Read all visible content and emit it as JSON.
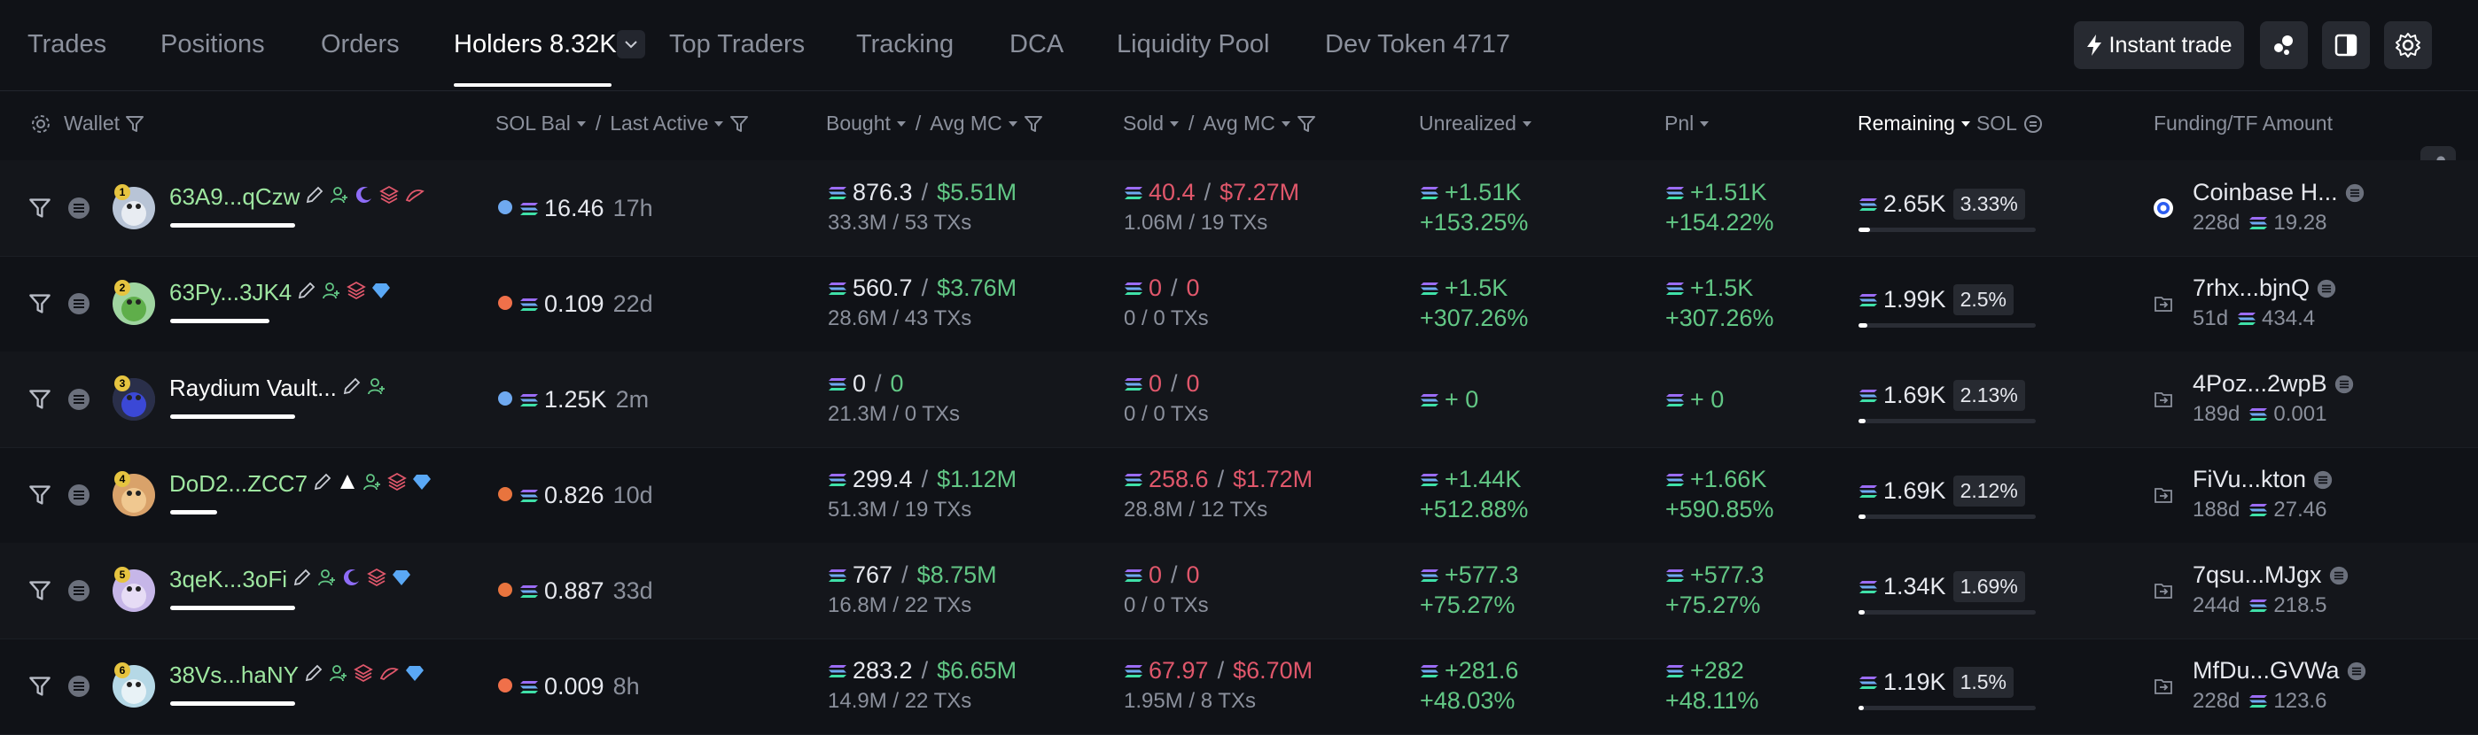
{
  "tabs": {
    "trades": "Trades",
    "positions": "Positions",
    "orders": "Orders",
    "holders": "Holders 8.32K",
    "top_traders": "Top Traders",
    "tracking": "Tracking",
    "dca": "DCA",
    "liquidity_pool": "Liquidity Pool",
    "dev_token": "Dev Token 4717"
  },
  "toolbar": {
    "instant_trade": "Instant trade"
  },
  "columns": {
    "wallet": "Wallet",
    "sol_bal": "SOL Bal",
    "last_active": "Last Active",
    "bought": "Bought",
    "avg_mc_bought": "Avg MC",
    "sold": "Sold",
    "avg_mc_sold": "Avg MC",
    "unrealized": "Unrealized",
    "pnl": "Pnl",
    "remaining": "Remaining",
    "remaining_unit": "SOL",
    "funding": "Funding/TF Amount",
    "slash": "/"
  },
  "colors": {
    "green": "#62c785",
    "red": "#e0576b",
    "accent_wallet": "#9ee6a0",
    "bg": "#101217"
  },
  "rows": [
    {
      "rank": "1",
      "wallet": "63A9...qCzw",
      "wallet_bar": 0.88,
      "wallet_color": "green",
      "sol_bal": "16.46",
      "last_active": "17h",
      "bought_sol": "876.3",
      "bought_mc": "$5.51M",
      "bought_sub": "33.3M / 53 TXs",
      "sold_sol": "40.4",
      "sold_mc": "$7.27M",
      "sold_sub": "1.06M / 19 TXs",
      "unrealized": "+1.51K",
      "unrealized_pct": "+153.25%",
      "pnl": "+1.51K",
      "pnl_pct": "+154.22%",
      "remaining": "2.65K",
      "remaining_pct": "3.33%",
      "remaining_frac": 0.0333,
      "funding_name": "Coinbase H...",
      "funding_age": "228d",
      "funding_amt": "19.28",
      "funding_icon": "coinbase-icon"
    },
    {
      "rank": "2",
      "wallet": "63Py...3JK4",
      "wallet_bar": 0.7,
      "wallet_color": "green",
      "sol_bal": "0.109",
      "last_active": "22d",
      "bought_sol": "560.7",
      "bought_mc": "$3.76M",
      "bought_sub": "28.6M / 43 TXs",
      "sold_sol": "0",
      "sold_mc": "0",
      "sold_sub": "0 / 0 TXs",
      "unrealized": "+1.5K",
      "unrealized_pct": "+307.26%",
      "pnl": "+1.5K",
      "pnl_pct": "+307.26%",
      "remaining": "1.99K",
      "remaining_pct": "2.5%",
      "remaining_frac": 0.025,
      "funding_name": "7rhx...bjnQ",
      "funding_age": "51d",
      "funding_amt": "434.4",
      "funding_icon": "transfer-in-icon"
    },
    {
      "rank": "3",
      "wallet": "Raydium Vault...",
      "wallet_bar": 0.88,
      "wallet_color": "white",
      "sol_bal": "1.25K",
      "last_active": "2m",
      "bought_sol": "0",
      "bought_mc": "0",
      "bought_sub": "21.3M / 0 TXs",
      "sold_sol": "0",
      "sold_mc": "0",
      "sold_sub": "0 / 0 TXs",
      "unrealized": "+ 0",
      "unrealized_pct": "",
      "pnl": "+ 0",
      "pnl_pct": "",
      "remaining": "1.69K",
      "remaining_pct": "2.13%",
      "remaining_frac": 0.0213,
      "funding_name": "4Poz...2wpB",
      "funding_age": "189d",
      "funding_amt": "0.001",
      "funding_icon": "transfer-in-icon"
    },
    {
      "rank": "4",
      "wallet": "DoD2...ZCC7",
      "wallet_bar": 0.33,
      "wallet_color": "green",
      "sol_bal": "0.826",
      "last_active": "10d",
      "bought_sol": "299.4",
      "bought_mc": "$1.12M",
      "bought_sub": "51.3M / 19 TXs",
      "sold_sol": "258.6",
      "sold_mc": "$1.72M",
      "sold_sub": "28.8M / 12 TXs",
      "unrealized": "+1.44K",
      "unrealized_pct": "+512.88%",
      "pnl": "+1.66K",
      "pnl_pct": "+590.85%",
      "remaining": "1.69K",
      "remaining_pct": "2.12%",
      "remaining_frac": 0.0212,
      "funding_name": "FiVu...kton",
      "funding_age": "188d",
      "funding_amt": "27.46",
      "funding_icon": "transfer-in-icon"
    },
    {
      "rank": "5",
      "wallet": "3qeK...3oFi",
      "wallet_bar": 0.88,
      "wallet_color": "green",
      "sol_bal": "0.887",
      "last_active": "33d",
      "bought_sol": "767",
      "bought_mc": "$8.75M",
      "bought_sub": "16.8M / 22 TXs",
      "sold_sol": "0",
      "sold_mc": "0",
      "sold_sub": "0 / 0 TXs",
      "unrealized": "+577.3",
      "unrealized_pct": "+75.27%",
      "pnl": "+577.3",
      "pnl_pct": "+75.27%",
      "remaining": "1.34K",
      "remaining_pct": "1.69%",
      "remaining_frac": 0.0169,
      "funding_name": "7qsu...MJgx",
      "funding_age": "244d",
      "funding_amt": "218.5",
      "funding_icon": "transfer-in-icon"
    },
    {
      "rank": "6",
      "wallet": "38Vs...haNY",
      "wallet_bar": 0.88,
      "wallet_color": "green",
      "sol_bal": "0.009",
      "last_active": "8h",
      "bought_sol": "283.2",
      "bought_mc": "$6.65M",
      "bought_sub": "14.9M / 22 TXs",
      "sold_sol": "67.97",
      "sold_mc": "$6.70M",
      "sold_sub": "1.95M / 8 TXs",
      "unrealized": "+281.6",
      "unrealized_pct": "+48.03%",
      "pnl": "+282",
      "pnl_pct": "+48.11%",
      "remaining": "1.19K",
      "remaining_pct": "1.5%",
      "remaining_frac": 0.015,
      "funding_name": "MfDu...GVWa",
      "funding_age": "228d",
      "funding_amt": "123.6",
      "funding_icon": "transfer-in-icon"
    }
  ]
}
